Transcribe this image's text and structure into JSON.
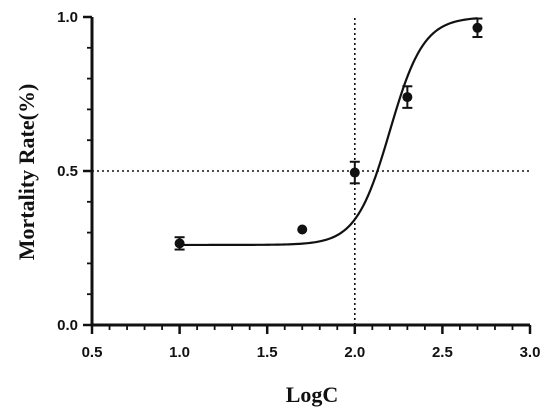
{
  "chart_data": {
    "type": "scatter",
    "title": "",
    "xlabel": "LogC",
    "ylabel": "Mortality Rate(%)",
    "xlim": [
      0.5,
      3.0
    ],
    "ylim": [
      0.0,
      1.0
    ],
    "x_ticks": [
      "0.5",
      "1.0",
      "1.5",
      "2.0",
      "2.5",
      "3.0"
    ],
    "y_ticks": [
      "0.0",
      "0.5",
      "1.0"
    ],
    "grid": false,
    "legend": "none",
    "series": [
      {
        "points": [
          {
            "x": 1.0,
            "y": 0.265,
            "err": 0.02
          },
          {
            "x": 1.7,
            "y": 0.31,
            "err": 0.0
          },
          {
            "x": 2.0,
            "y": 0.495,
            "err": 0.035
          },
          {
            "x": 2.3,
            "y": 0.74,
            "err": 0.035
          },
          {
            "x": 2.7,
            "y": 0.965,
            "err": 0.03
          }
        ],
        "fit": {
          "model": "sigmoid",
          "bottom": 0.26,
          "top": 1.0,
          "logEC50": 2.2,
          "hill_slope": 4.5,
          "x_range": [
            1.0,
            2.7
          ]
        }
      }
    ],
    "reference_lines": [
      {
        "axis": "x",
        "value": 2.0,
        "style": "dotted"
      },
      {
        "axis": "y",
        "value": 0.5,
        "style": "dotted"
      }
    ],
    "colors": {
      "axis": "#111111",
      "marker": "#111111",
      "curve": "#111111"
    }
  }
}
